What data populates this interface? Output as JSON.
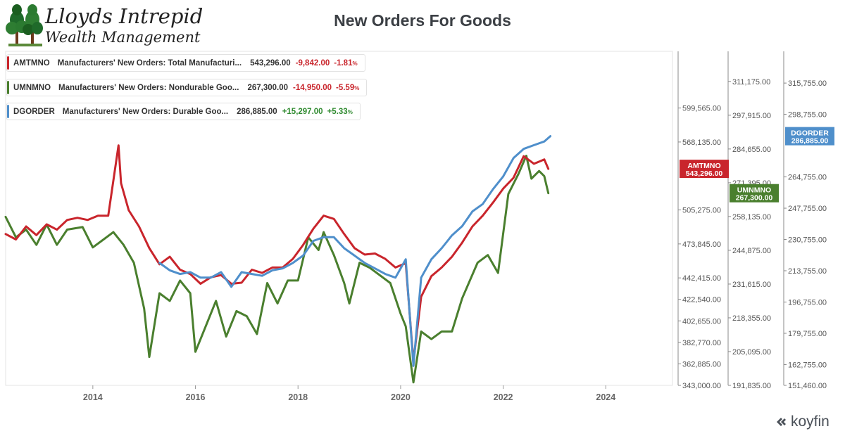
{
  "logo": {
    "line1": "Lloyds Intrepid",
    "line2": "Wealth Management",
    "icon": "trees-icon"
  },
  "title": "New Orders For Goods",
  "brand": {
    "name": "koyfin",
    "icon": "koyfin-logo-icon"
  },
  "colors": {
    "red": "#c9252c",
    "green": "#4a7f2e",
    "blue": "#4f8fcb"
  },
  "legend": [
    {
      "code": "AMTMNO",
      "desc": "Manufacturers' New Orders: Total Manufacturi...",
      "value": "543,296.00",
      "change": "-9,842.00",
      "pct": "-1.81",
      "pct_unit": "%",
      "dir": "neg"
    },
    {
      "code": "UMNMNO",
      "desc": "Manufacturers' New Orders: Nondurable Goo...",
      "value": "267,300.00",
      "change": "-14,950.00",
      "pct": "-5.59",
      "pct_unit": "%",
      "dir": "neg"
    },
    {
      "code": "DGORDER",
      "desc": "Manufacturers' New Orders: Durable Goo...",
      "value": "286,885.00",
      "change": "+15,297.00",
      "pct": "+5.33",
      "pct_unit": "%",
      "dir": "pos"
    }
  ],
  "chart_data": {
    "type": "line",
    "title": "New Orders For Goods",
    "xlabel": "",
    "ylabel": "",
    "x_range": [
      2012.3,
      2025.3
    ],
    "x_ticks": [
      "2014",
      "2016",
      "2018",
      "2020",
      "2022",
      "2024"
    ],
    "grid": false,
    "axes": [
      {
        "id": "amtmno",
        "series": "AMTMNO",
        "range": [
          343000,
          652000
        ],
        "ticks": [
          "599,565.00",
          "568,135.00",
          "505,275.00",
          "473,845.00",
          "442,415.00",
          "422,540.00",
          "402,655.00",
          "382,770.00",
          "362,885.00",
          "343,000.00"
        ],
        "tick_values": [
          599565,
          568135,
          505275,
          473845,
          442415,
          422540,
          402655,
          382770,
          362885,
          343000
        ],
        "label": {
          "code": "AMTMNO",
          "value": "543,296.00"
        }
      },
      {
        "id": "umnmno",
        "series": "UMNMNO",
        "range": [
          191835,
          323000
        ],
        "ticks": [
          "311,175.00",
          "297,915.00",
          "284,655.00",
          "271,395.00",
          "258,135.00",
          "244,875.00",
          "231,615.00",
          "218,355.00",
          "205,095.00",
          "191,835.00"
        ],
        "tick_values": [
          311175,
          297915,
          284655,
          271395,
          258135,
          244875,
          231615,
          218355,
          205095,
          191835
        ],
        "label": {
          "code": "UMNMNO",
          "value": "267,300.00"
        }
      },
      {
        "id": "dgorder",
        "series": "DGORDER",
        "range": [
          151460,
          333000
        ],
        "ticks": [
          "315,755.00",
          "298,755.00",
          "264,755.00",
          "247,755.00",
          "230,755.00",
          "213,755.00",
          "196,755.00",
          "179,755.00",
          "162,755.00",
          "151,460.00"
        ],
        "tick_values": [
          315755,
          298755,
          264755,
          247755,
          230755,
          213755,
          196755,
          179755,
          162755,
          151460
        ],
        "label": {
          "code": "DGORDER",
          "value": "286,885.00"
        }
      }
    ],
    "series": [
      {
        "name": "UMNMNO",
        "axis": "umnmno",
        "color": "#4a7f2e",
        "points": [
          [
            2012.3,
            258
          ],
          [
            2012.5,
            250
          ],
          [
            2012.7,
            253
          ],
          [
            2012.9,
            247
          ],
          [
            2013.1,
            255
          ],
          [
            2013.3,
            247
          ],
          [
            2013.5,
            253
          ],
          [
            2013.8,
            254
          ],
          [
            2014.0,
            246
          ],
          [
            2014.2,
            249
          ],
          [
            2014.4,
            252
          ],
          [
            2014.6,
            247
          ],
          [
            2014.8,
            240
          ],
          [
            2015.0,
            222
          ],
          [
            2015.1,
            203
          ],
          [
            2015.3,
            228
          ],
          [
            2015.5,
            225
          ],
          [
            2015.7,
            233
          ],
          [
            2015.9,
            228
          ],
          [
            2016.0,
            205
          ],
          [
            2016.2,
            215
          ],
          [
            2016.4,
            225
          ],
          [
            2016.6,
            211
          ],
          [
            2016.8,
            221
          ],
          [
            2017.0,
            219
          ],
          [
            2017.2,
            212
          ],
          [
            2017.4,
            232
          ],
          [
            2017.6,
            224
          ],
          [
            2017.8,
            233
          ],
          [
            2018.0,
            233
          ],
          [
            2018.2,
            250
          ],
          [
            2018.4,
            245
          ],
          [
            2018.5,
            252
          ],
          [
            2018.7,
            243
          ],
          [
            2018.9,
            232
          ],
          [
            2019.0,
            224
          ],
          [
            2019.2,
            240
          ],
          [
            2019.4,
            238
          ],
          [
            2019.6,
            235
          ],
          [
            2019.8,
            232
          ],
          [
            2020.0,
            220
          ],
          [
            2020.1,
            215
          ],
          [
            2020.25,
            193
          ],
          [
            2020.4,
            213
          ],
          [
            2020.6,
            210
          ],
          [
            2020.8,
            213
          ],
          [
            2021.0,
            213
          ],
          [
            2021.2,
            226
          ],
          [
            2021.5,
            240
          ],
          [
            2021.7,
            243
          ],
          [
            2021.9,
            236
          ],
          [
            2022.1,
            267
          ],
          [
            2022.3,
            275
          ],
          [
            2022.45,
            282
          ],
          [
            2022.55,
            273
          ],
          [
            2022.7,
            276
          ],
          [
            2022.8,
            274
          ],
          [
            2022.88,
            267.3
          ]
        ]
      },
      {
        "name": "AMTMNO",
        "axis": "amtmno",
        "color": "#c9252c",
        "points": [
          [
            2012.3,
            483
          ],
          [
            2012.5,
            478
          ],
          [
            2012.7,
            490
          ],
          [
            2012.9,
            482
          ],
          [
            2013.1,
            492
          ],
          [
            2013.3,
            487
          ],
          [
            2013.5,
            496
          ],
          [
            2013.7,
            498
          ],
          [
            2013.9,
            496
          ],
          [
            2014.1,
            500
          ],
          [
            2014.3,
            500
          ],
          [
            2014.5,
            565
          ],
          [
            2014.55,
            530
          ],
          [
            2014.7,
            505
          ],
          [
            2014.9,
            490
          ],
          [
            2015.1,
            470
          ],
          [
            2015.3,
            455
          ],
          [
            2015.5,
            462
          ],
          [
            2015.7,
            450
          ],
          [
            2015.9,
            446
          ],
          [
            2016.1,
            437
          ],
          [
            2016.3,
            443
          ],
          [
            2016.5,
            445
          ],
          [
            2016.7,
            437
          ],
          [
            2016.9,
            438
          ],
          [
            2017.1,
            450
          ],
          [
            2017.3,
            447
          ],
          [
            2017.5,
            452
          ],
          [
            2017.7,
            452
          ],
          [
            2017.9,
            460
          ],
          [
            2018.1,
            473
          ],
          [
            2018.3,
            488
          ],
          [
            2018.5,
            500
          ],
          [
            2018.7,
            497
          ],
          [
            2018.9,
            483
          ],
          [
            2019.1,
            470
          ],
          [
            2019.3,
            464
          ],
          [
            2019.5,
            465
          ],
          [
            2019.7,
            460
          ],
          [
            2019.9,
            452
          ],
          [
            2020.1,
            456
          ],
          [
            2020.25,
            365
          ],
          [
            2020.4,
            425
          ],
          [
            2020.6,
            444
          ],
          [
            2020.8,
            452
          ],
          [
            2021.0,
            462
          ],
          [
            2021.2,
            475
          ],
          [
            2021.4,
            490
          ],
          [
            2021.6,
            500
          ],
          [
            2021.8,
            512
          ],
          [
            2022.0,
            525
          ],
          [
            2022.2,
            535
          ],
          [
            2022.4,
            555
          ],
          [
            2022.6,
            548
          ],
          [
            2022.8,
            552
          ],
          [
            2022.88,
            543.3
          ]
        ]
      },
      {
        "name": "DGORDER",
        "axis": "dgorder",
        "color": "#4f8fcb",
        "points": [
          [
            2015.3,
            218
          ],
          [
            2015.5,
            214
          ],
          [
            2015.7,
            212
          ],
          [
            2015.9,
            213
          ],
          [
            2016.1,
            210
          ],
          [
            2016.3,
            210
          ],
          [
            2016.5,
            213
          ],
          [
            2016.7,
            205
          ],
          [
            2016.9,
            213
          ],
          [
            2017.1,
            212
          ],
          [
            2017.3,
            211
          ],
          [
            2017.5,
            214
          ],
          [
            2017.7,
            215
          ],
          [
            2017.9,
            218
          ],
          [
            2018.1,
            222
          ],
          [
            2018.3,
            230
          ],
          [
            2018.5,
            232
          ],
          [
            2018.7,
            232
          ],
          [
            2018.9,
            226
          ],
          [
            2019.1,
            222
          ],
          [
            2019.3,
            218
          ],
          [
            2019.5,
            215
          ],
          [
            2019.7,
            212
          ],
          [
            2019.9,
            210
          ],
          [
            2020.1,
            220
          ],
          [
            2020.25,
            162
          ],
          [
            2020.4,
            210
          ],
          [
            2020.6,
            220
          ],
          [
            2020.8,
            226
          ],
          [
            2021.0,
            233
          ],
          [
            2021.2,
            238
          ],
          [
            2021.4,
            246
          ],
          [
            2021.6,
            250
          ],
          [
            2021.8,
            258
          ],
          [
            2022.0,
            265
          ],
          [
            2022.2,
            275
          ],
          [
            2022.4,
            280
          ],
          [
            2022.6,
            282
          ],
          [
            2022.8,
            284
          ],
          [
            2022.92,
            286.9
          ]
        ]
      }
    ]
  }
}
